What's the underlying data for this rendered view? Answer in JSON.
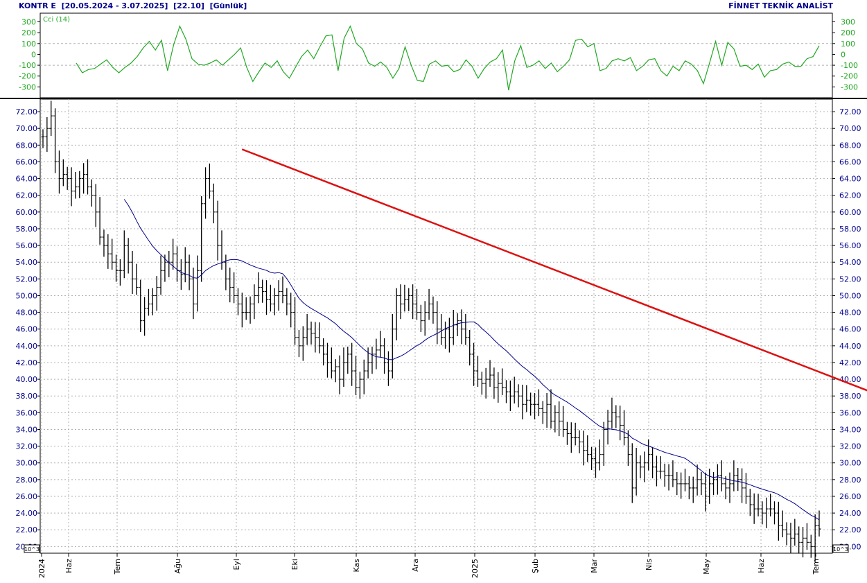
{
  "header": {
    "symbol": "KONTR E",
    "range": "[20.05.2024 - 3.07.2025]",
    "last": "[22.10]",
    "period": "[Günlük]",
    "brand": "FİNNET TEKNİK ANALİST"
  },
  "chart_data": [
    {
      "type": "line",
      "name": "cci-panel",
      "legend": "Cci (14)",
      "ylim": [
        -400,
        380
      ],
      "yticks": [
        "300",
        "200",
        "100",
        "0",
        "-100",
        "-200",
        "-300"
      ],
      "reference_lines": [
        100,
        -100
      ],
      "grid": false,
      "colors": {
        "cci": "#22a822",
        "reference": "#b0b0b0"
      },
      "series": [
        {
          "values": [
            -80,
            -170,
            -140,
            -130,
            -90,
            -50,
            -120,
            -170,
            -120,
            -80,
            -20,
            60,
            120,
            40,
            130,
            -150,
            90,
            260,
            140,
            -40,
            -90,
            -100,
            -80,
            -50,
            -100,
            -50,
            0,
            60,
            -120,
            -250,
            -160,
            -80,
            -120,
            -60,
            -160,
            -220,
            -120,
            -20,
            40,
            -40,
            70,
            170,
            180,
            -150,
            150,
            260,
            100,
            50,
            -80,
            -110,
            -70,
            -120,
            -220,
            -130,
            70,
            -100,
            -240,
            -250,
            -90,
            -60,
            -110,
            -100,
            -160,
            -140,
            -50,
            -110,
            -220,
            -130,
            -70,
            -40,
            40,
            -330,
            -60,
            80,
            -120,
            -100,
            -60,
            -130,
            -80,
            -160,
            -110,
            -50,
            130,
            140,
            70,
            100,
            -150,
            -130,
            -60,
            -40,
            -60,
            -30,
            -150,
            -110,
            -50,
            -40,
            -150,
            -200,
            -110,
            -150,
            -60,
            -90,
            -150,
            -270,
            -80,
            120,
            -100,
            110,
            50,
            -110,
            -100,
            -140,
            -90,
            -210,
            -150,
            -140,
            -90,
            -70,
            -110,
            -110,
            -40,
            -20,
            80
          ]
        }
      ]
    },
    {
      "type": "ohlc",
      "name": "price-panel",
      "ylim": [
        19.2,
        73.5
      ],
      "yticks": [
        "72.00",
        "70.00",
        "68.00",
        "66.00",
        "64.00",
        "62.00",
        "60.00",
        "58.00",
        "56.00",
        "54.00",
        "52.00",
        "50.00",
        "48.00",
        "46.00",
        "44.00",
        "42.00",
        "40.00",
        "38.00",
        "36.00",
        "34.00",
        "32.00",
        "30.00",
        "28.00",
        "26.00",
        "24.00",
        "22.00",
        "20.00"
      ],
      "xlabels": [
        "2024",
        "Haz",
        "Tem",
        "Ağu",
        "Eyl",
        "Eki",
        "Kas",
        "Ara",
        "2025",
        "Şub",
        "Mar",
        "Nis",
        "May",
        "Haz",
        "Tem"
      ],
      "scale_note": "10^3",
      "grid": true,
      "colors": {
        "bars": "#000000",
        "moving_average": "#00008b",
        "trendline": "#dd1111",
        "grid": "#b0b0b0"
      },
      "closes": [
        69.0,
        70.0,
        71.5,
        66.0,
        64.0,
        64.5,
        64.0,
        62.5,
        63.0,
        64.0,
        64.5,
        63.0,
        62.0,
        60.0,
        57.0,
        56.0,
        55.0,
        54.0,
        53.0,
        53.0,
        56.0,
        54.0,
        52.0,
        51.0,
        47.0,
        48.5,
        49.0,
        50.0,
        51.0,
        53.0,
        54.0,
        54.0,
        55.0,
        53.0,
        52.5,
        54.0,
        52.0,
        49.0,
        53.0,
        61.0,
        64.0,
        62.5,
        60.0,
        56.0,
        54.0,
        52.0,
        51.0,
        50.0,
        49.0,
        48.0,
        48.0,
        49.0,
        50.0,
        51.0,
        50.5,
        49.5,
        49.0,
        50.0,
        50.5,
        50.0,
        49.0,
        48.0,
        45.0,
        44.0,
        45.0,
        46.0,
        45.5,
        45.0,
        44.0,
        43.0,
        42.0,
        41.0,
        41.5,
        40.0,
        42.0,
        43.0,
        41.0,
        39.0,
        40.0,
        41.0,
        42.0,
        43.0,
        43.5,
        44.0,
        42.0,
        41.0,
        46.0,
        50.0,
        49.0,
        49.5,
        50.0,
        49.0,
        48.0,
        47.0,
        48.0,
        49.0,
        48.0,
        46.0,
        45.0,
        46.0,
        45.0,
        46.5,
        47.0,
        46.0,
        45.0,
        43.0,
        41.0,
        40.0,
        39.5,
        40.0,
        40.5,
        39.0,
        39.5,
        39.0,
        38.5,
        38.0,
        38.5,
        38.0,
        37.0,
        37.5,
        37.0,
        37.0,
        36.5,
        36.0,
        37.0,
        35.0,
        36.0,
        35.0,
        34.0,
        33.5,
        33.0,
        33.0,
        32.5,
        31.5,
        31.0,
        30.5,
        30.0,
        31.0,
        34.0,
        35.0,
        36.0,
        35.5,
        34.5,
        33.0,
        31.0,
        27.0,
        30.0,
        29.5,
        30.0,
        31.0,
        29.5,
        29.0,
        29.0,
        28.5,
        28.5,
        28.0,
        27.5,
        27.5,
        27.5,
        27.0,
        27.0,
        28.0,
        27.5,
        26.0,
        27.5,
        28.0,
        28.5,
        27.5,
        27.0,
        27.5,
        28.5,
        28.0,
        27.0,
        26.0,
        25.0,
        24.5,
        24.5,
        24.0,
        24.5,
        24.5,
        24.0,
        22.5,
        22.0,
        21.5,
        21.0,
        21.5,
        20.5,
        21.0,
        20.5,
        20.0,
        22.5,
        22.1
      ],
      "moving_average_start_index": 20,
      "moving_average_period": 21,
      "trendline": {
        "from": {
          "index": 50,
          "value": 67.5
        },
        "to": {
          "index": 295,
          "value": 21.0
        }
      }
    }
  ]
}
